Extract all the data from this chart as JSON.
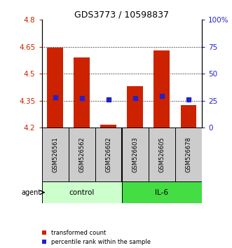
{
  "title": "GDS3773 / 10598837",
  "samples": [
    "GSM526561",
    "GSM526562",
    "GSM526602",
    "GSM526603",
    "GSM526605",
    "GSM526678"
  ],
  "red_values": [
    4.645,
    4.59,
    4.215,
    4.43,
    4.63,
    4.325
  ],
  "blue_values": [
    4.37,
    4.365,
    4.355,
    4.365,
    4.375,
    4.355
  ],
  "ylim_left": [
    4.2,
    4.8
  ],
  "ylim_right": [
    0,
    100
  ],
  "yticks_left": [
    4.2,
    4.35,
    4.5,
    4.65,
    4.8
  ],
  "yticks_right": [
    0,
    25,
    50,
    75,
    100
  ],
  "hlines": [
    4.35,
    4.5,
    4.65
  ],
  "bar_bottom": 4.2,
  "red_color": "#cc2200",
  "blue_color": "#2222cc",
  "control_color": "#ccffcc",
  "il6_color": "#44dd44",
  "sample_box_color": "#cccccc",
  "legend_red": "transformed count",
  "legend_blue": "percentile rank within the sample",
  "bar_width": 0.6,
  "split_idx": 2.5
}
